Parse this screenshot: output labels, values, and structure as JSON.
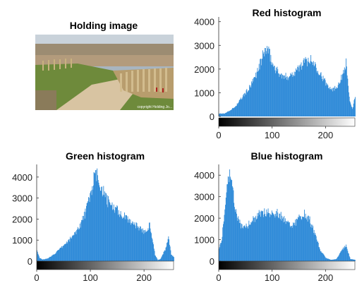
{
  "figure": {
    "image_title": "Holding image",
    "image_watermark": "copyright Holding Jo... "
  },
  "colors": {
    "bar": "#2e8ad8",
    "axis": "#333333"
  },
  "chart_data": [
    {
      "type": "bar",
      "title": "Red histogram",
      "xlabel": "",
      "ylabel": "",
      "xlim": [
        0,
        255
      ],
      "ylim": [
        0,
        4200
      ],
      "xticks": [
        0,
        100,
        200
      ],
      "yticks": [
        0,
        1000,
        2000,
        3000,
        4000
      ],
      "grid": false,
      "colorbar": "grayscale",
      "profile": [
        [
          0,
          120
        ],
        [
          10,
          120
        ],
        [
          20,
          250
        ],
        [
          30,
          400
        ],
        [
          40,
          700
        ],
        [
          50,
          1000
        ],
        [
          60,
          1300
        ],
        [
          70,
          1800
        ],
        [
          80,
          2400
        ],
        [
          85,
          2750
        ],
        [
          90,
          2850
        ],
        [
          95,
          2600
        ],
        [
          100,
          2200
        ],
        [
          110,
          1900
        ],
        [
          120,
          1650
        ],
        [
          130,
          1700
        ],
        [
          140,
          1850
        ],
        [
          150,
          2050
        ],
        [
          160,
          2300
        ],
        [
          170,
          2400
        ],
        [
          180,
          2200
        ],
        [
          190,
          1800
        ],
        [
          200,
          1400
        ],
        [
          210,
          1200
        ],
        [
          215,
          1150
        ],
        [
          220,
          1250
        ],
        [
          230,
          1650
        ],
        [
          235,
          2100
        ],
        [
          238,
          2250
        ],
        [
          240,
          1800
        ],
        [
          245,
          600
        ],
        [
          250,
          300
        ],
        [
          255,
          900
        ]
      ]
    },
    {
      "type": "bar",
      "title": "Green histogram",
      "xlabel": "",
      "ylabel": "",
      "xlim": [
        0,
        255
      ],
      "ylim": [
        0,
        4600
      ],
      "xticks": [
        0,
        100,
        200
      ],
      "yticks": [
        0,
        1000,
        2000,
        3000,
        4000
      ],
      "grid": false,
      "colorbar": "grayscale",
      "profile": [
        [
          0,
          500
        ],
        [
          5,
          150
        ],
        [
          10,
          80
        ],
        [
          20,
          120
        ],
        [
          30,
          300
        ],
        [
          40,
          500
        ],
        [
          50,
          750
        ],
        [
          60,
          1000
        ],
        [
          70,
          1300
        ],
        [
          80,
          1700
        ],
        [
          90,
          2300
        ],
        [
          100,
          3200
        ],
        [
          105,
          3800
        ],
        [
          110,
          4100
        ],
        [
          115,
          3900
        ],
        [
          120,
          3500
        ],
        [
          130,
          2900
        ],
        [
          140,
          2600
        ],
        [
          150,
          2400
        ],
        [
          160,
          2150
        ],
        [
          170,
          2000
        ],
        [
          180,
          1800
        ],
        [
          190,
          1600
        ],
        [
          200,
          1400
        ],
        [
          205,
          1550
        ],
        [
          210,
          1700
        ],
        [
          215,
          1100
        ],
        [
          220,
          300
        ],
        [
          225,
          50
        ],
        [
          230,
          100
        ],
        [
          240,
          600
        ],
        [
          245,
          1200
        ],
        [
          250,
          300
        ],
        [
          255,
          200
        ]
      ]
    },
    {
      "type": "bar",
      "title": "Blue histogram",
      "xlabel": "",
      "ylabel": "",
      "xlim": [
        0,
        255
      ],
      "ylim": [
        0,
        4500
      ],
      "xticks": [
        0,
        100,
        200
      ],
      "yticks": [
        0,
        1000,
        2000,
        3000,
        4000
      ],
      "grid": false,
      "colorbar": "grayscale",
      "profile": [
        [
          0,
          600
        ],
        [
          5,
          1000
        ],
        [
          10,
          2200
        ],
        [
          15,
          3800
        ],
        [
          20,
          4100
        ],
        [
          25,
          3400
        ],
        [
          30,
          2400
        ],
        [
          40,
          1700
        ],
        [
          50,
          1600
        ],
        [
          60,
          1800
        ],
        [
          70,
          2100
        ],
        [
          80,
          2250
        ],
        [
          90,
          2300
        ],
        [
          100,
          2250
        ],
        [
          110,
          2250
        ],
        [
          120,
          2000
        ],
        [
          130,
          1750
        ],
        [
          140,
          1700
        ],
        [
          150,
          2000
        ],
        [
          160,
          2200
        ],
        [
          170,
          1900
        ],
        [
          180,
          1200
        ],
        [
          190,
          500
        ],
        [
          200,
          150
        ],
        [
          210,
          60
        ],
        [
          220,
          100
        ],
        [
          230,
          500
        ],
        [
          238,
          750
        ],
        [
          242,
          400
        ],
        [
          246,
          100
        ],
        [
          255,
          60
        ]
      ]
    }
  ]
}
